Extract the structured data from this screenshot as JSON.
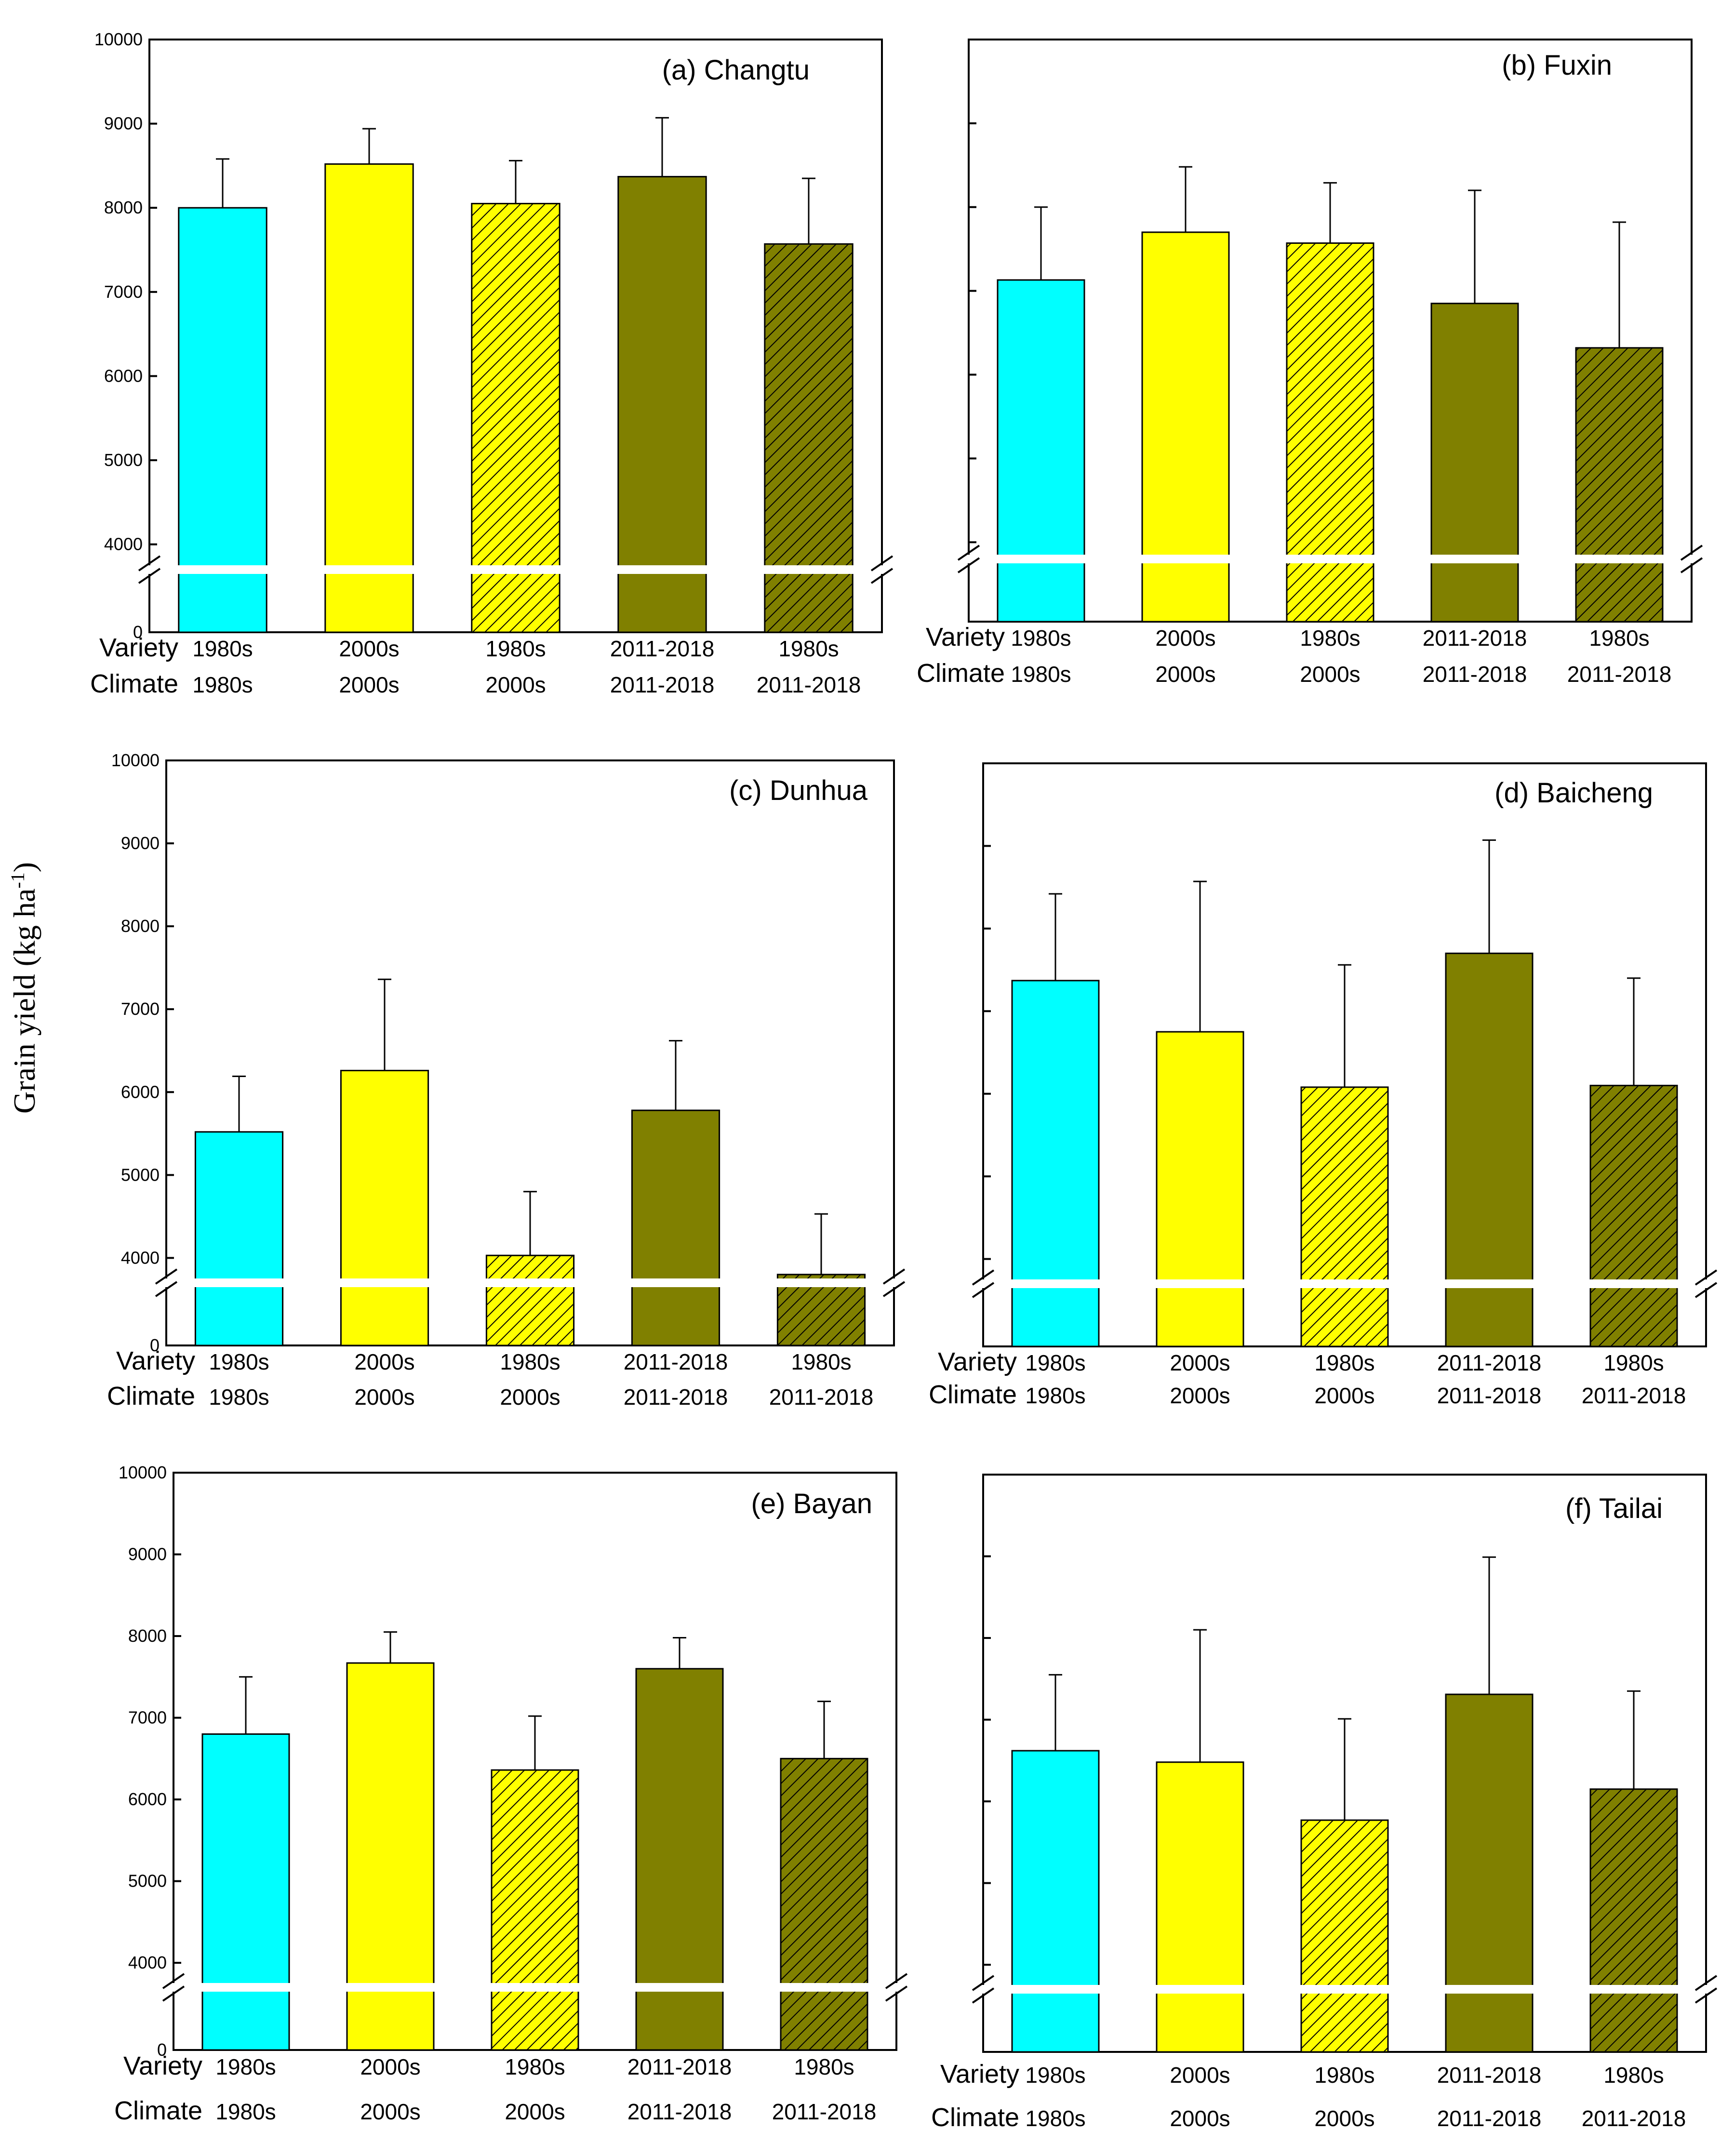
{
  "figure": {
    "y_axis_title": "Grain yield (kg ha",
    "y_axis_unit_sup": "-1",
    "y_axis_title_close": ")",
    "row_labels": {
      "variety": "Variety",
      "climate": "Climate"
    },
    "colors": {
      "cyan": "#00ffff",
      "yellow": "#ffff00",
      "olive": "#808000",
      "hatch": "#000000",
      "axis": "#000000"
    }
  },
  "chart_data": [
    {
      "type": "bar",
      "title": "(a) Changtu",
      "show_tick_labels": true,
      "ylim": [
        0,
        10000
      ],
      "axis_break": [
        0,
        3700
      ],
      "yticks": [
        0,
        4000,
        5000,
        6000,
        7000,
        8000,
        9000,
        10000
      ],
      "categories": [
        {
          "variety": "1980s",
          "climate": "1980s"
        },
        {
          "variety": "2000s",
          "climate": "2000s"
        },
        {
          "variety": "1980s",
          "climate": "2000s"
        },
        {
          "variety": "2011-2018",
          "climate": "2011-2018"
        },
        {
          "variety": "1980s",
          "climate": "2011-2018"
        }
      ],
      "values": [
        8000,
        8520,
        8050,
        8370,
        7570
      ],
      "errors": [
        580,
        420,
        510,
        700,
        780
      ],
      "fills": [
        "cyan",
        "yellow",
        "yellow-hatch",
        "olive",
        "olive-hatch"
      ]
    },
    {
      "type": "bar",
      "title": "(b) Fuxin",
      "show_tick_labels": false,
      "ylim": [
        0,
        10000
      ],
      "axis_break": [
        0,
        3800
      ],
      "yticks": [
        0,
        4000,
        5000,
        6000,
        7000,
        8000,
        9000,
        10000
      ],
      "categories": [
        {
          "variety": "1980s",
          "climate": "1980s"
        },
        {
          "variety": "2000s",
          "climate": "2000s"
        },
        {
          "variety": "1980s",
          "climate": "2000s"
        },
        {
          "variety": "2011-2018",
          "climate": "2011-2018"
        },
        {
          "variety": "1980s",
          "climate": "2011-2018"
        }
      ],
      "values": [
        7130,
        7700,
        7570,
        6850,
        6320
      ],
      "errors": [
        870,
        780,
        720,
        1350,
        1500
      ],
      "fills": [
        "cyan",
        "yellow",
        "yellow-hatch",
        "olive",
        "olive-hatch"
      ]
    },
    {
      "type": "bar",
      "title": "(c) Dunhua",
      "show_tick_labels": true,
      "ylim": [
        0,
        10000
      ],
      "axis_break": [
        0,
        3700
      ],
      "yticks": [
        0,
        4000,
        5000,
        6000,
        7000,
        8000,
        9000,
        10000
      ],
      "categories": [
        {
          "variety": "1980s",
          "climate": "1980s"
        },
        {
          "variety": "2000s",
          "climate": "2000s"
        },
        {
          "variety": "1980s",
          "climate": "2000s"
        },
        {
          "variety": "2011-2018",
          "climate": "2011-2018"
        },
        {
          "variety": "1980s",
          "climate": "2011-2018"
        }
      ],
      "values": [
        5520,
        6260,
        4030,
        5780,
        3800
      ],
      "errors": [
        670,
        1100,
        770,
        840,
        730
      ],
      "fills": [
        "cyan",
        "yellow",
        "yellow-hatch",
        "olive",
        "olive-hatch"
      ]
    },
    {
      "type": "bar",
      "title": "(d) Baicheng",
      "show_tick_labels": false,
      "ylim": [
        0,
        10000
      ],
      "axis_break": [
        0,
        3700
      ],
      "yticks": [
        0,
        4000,
        5000,
        6000,
        7000,
        8000,
        9000,
        10000
      ],
      "categories": [
        {
          "variety": "1980s",
          "climate": "1980s"
        },
        {
          "variety": "2000s",
          "climate": "2000s"
        },
        {
          "variety": "1980s",
          "climate": "2000s"
        },
        {
          "variety": "2011-2018",
          "climate": "2011-2018"
        },
        {
          "variety": "1980s",
          "climate": "2011-2018"
        }
      ],
      "values": [
        7370,
        6750,
        6080,
        7700,
        6100
      ],
      "errors": [
        1050,
        1820,
        1480,
        1370,
        1300
      ],
      "fills": [
        "cyan",
        "yellow",
        "yellow-hatch",
        "olive",
        "olive-hatch"
      ]
    },
    {
      "type": "bar",
      "title": "(e) Bayan",
      "show_tick_labels": true,
      "ylim": [
        0,
        10000
      ],
      "axis_break": [
        0,
        3700
      ],
      "yticks": [
        0,
        4000,
        5000,
        6000,
        7000,
        8000,
        9000,
        10000
      ],
      "categories": [
        {
          "variety": "1980s",
          "climate": "1980s"
        },
        {
          "variety": "2000s",
          "climate": "2000s"
        },
        {
          "variety": "1980s",
          "climate": "2000s"
        },
        {
          "variety": "2011-2018",
          "climate": "2011-2018"
        },
        {
          "variety": "1980s",
          "climate": "2011-2018"
        }
      ],
      "values": [
        6800,
        7670,
        6360,
        7600,
        6500
      ],
      "errors": [
        700,
        380,
        660,
        380,
        700
      ],
      "fills": [
        "cyan",
        "yellow",
        "yellow-hatch",
        "olive",
        "olive-hatch"
      ]
    },
    {
      "type": "bar",
      "title": "(f) Tailai",
      "show_tick_labels": false,
      "ylim": [
        0,
        10000
      ],
      "axis_break": [
        0,
        3700
      ],
      "yticks": [
        0,
        4000,
        5000,
        6000,
        7000,
        8000,
        9000,
        10000
      ],
      "categories": [
        {
          "variety": "1980s",
          "climate": "1980s"
        },
        {
          "variety": "2000s",
          "climate": "2000s"
        },
        {
          "variety": "1980s",
          "climate": "2000s"
        },
        {
          "variety": "2011-2018",
          "climate": "2011-2018"
        },
        {
          "variety": "1980s",
          "climate": "2011-2018"
        }
      ],
      "values": [
        6620,
        6480,
        5770,
        7310,
        6150
      ],
      "errors": [
        930,
        1620,
        1240,
        1680,
        1200
      ],
      "fills": [
        "cyan",
        "yellow",
        "yellow-hatch",
        "olive",
        "olive-hatch"
      ]
    }
  ]
}
